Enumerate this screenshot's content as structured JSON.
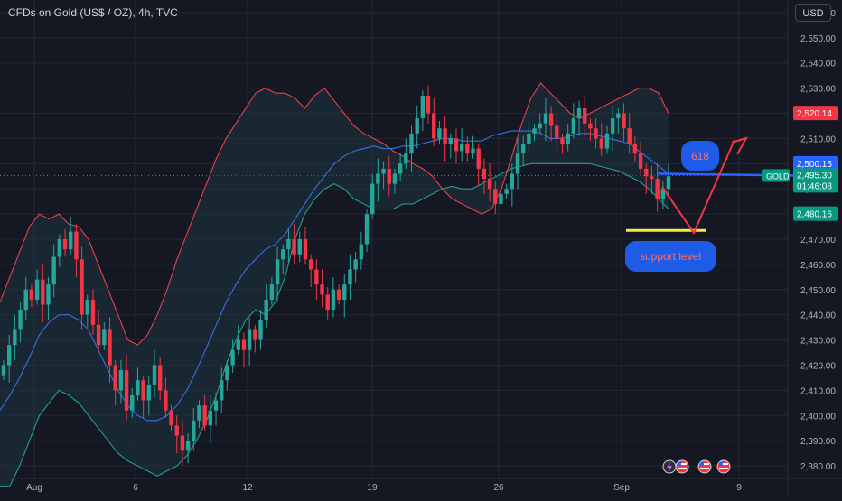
{
  "title": "CFDs on Gold (US$ / OZ), 4h, TVC",
  "currency": "USD",
  "colors": {
    "background": "#151822",
    "grid": "#242733",
    "bull": "#26a69a",
    "bear": "#f23645",
    "upper_band": "#e8404a",
    "middle_band": "#3a6fe0",
    "lower_band": "#22a085",
    "band_fill": "#1f3a4a",
    "annotation_red": "#f23645",
    "annotation_blue": "#2962ff",
    "support_yellow": "#f5e94a"
  },
  "chart_data": {
    "type": "candlestick",
    "symbol": "GOLD",
    "interval": "4h",
    "x_ticks": [
      "Aug",
      "6",
      "12",
      "19",
      "26",
      "Sep",
      "9"
    ],
    "y_ticks": [
      "2,380.00",
      "2,390.00",
      "2,400.00",
      "2,410.00",
      "2,420.00",
      "2,430.00",
      "2,440.00",
      "2,450.00",
      "2,460.00",
      "2,470.00",
      "2,480.00",
      "2,490.00",
      "2,500.00",
      "2,510.00",
      "2,520.00",
      "2,530.00",
      "2,540.00",
      "2,550.00",
      "2,560.00"
    ],
    "ylim": [
      2375,
      2565
    ],
    "price_labels": {
      "upper_band": "2,520.14",
      "middle_band": "2,500.15",
      "last_symbol": "GOLD",
      "last_price": "2,495.30",
      "countdown": "01:46:08",
      "lower_band": "2,480.16"
    },
    "last_price_value": 2495.3,
    "upper_band_value": 2520.14,
    "middle_band_value": 2500.15,
    "lower_band_value": 2480.16,
    "close_series": [
      2420,
      2428,
      2434,
      2442,
      2450,
      2446,
      2454,
      2444,
      2452,
      2463,
      2470,
      2466,
      2473,
      2462,
      2440,
      2446,
      2436,
      2428,
      2434,
      2420,
      2410,
      2418,
      2402,
      2408,
      2414,
      2406,
      2412,
      2420,
      2410,
      2402,
      2396,
      2392,
      2386,
      2390,
      2398,
      2404,
      2396,
      2402,
      2406,
      2414,
      2420,
      2426,
      2430,
      2426,
      2434,
      2430,
      2438,
      2446,
      2452,
      2462,
      2466,
      2470,
      2464,
      2470,
      2462,
      2458,
      2452,
      2448,
      2442,
      2450,
      2446,
      2452,
      2458,
      2462,
      2468,
      2480,
      2492,
      2496,
      2498,
      2492,
      2496,
      2500,
      2504,
      2512,
      2518,
      2527,
      2520,
      2510,
      2514,
      2508,
      2510,
      2505,
      2508,
      2504,
      2506,
      2498,
      2494,
      2490,
      2484,
      2488,
      2490,
      2496,
      2504,
      2508,
      2512,
      2514,
      2516,
      2520,
      2515,
      2510,
      2508,
      2512,
      2518,
      2522,
      2516,
      2514,
      2510,
      2506,
      2512,
      2518,
      2520,
      2514,
      2508,
      2504,
      2498,
      2495,
      2494,
      2486,
      2490,
      2495
    ],
    "upper_band_series": [
      2445,
      2455,
      2465,
      2475,
      2480,
      2478,
      2480,
      2476,
      2475,
      2470,
      2460,
      2450,
      2440,
      2430,
      2428,
      2432,
      2440,
      2450,
      2462,
      2472,
      2482,
      2492,
      2502,
      2510,
      2516,
      2522,
      2528,
      2530,
      2528,
      2528,
      2526,
      2522,
      2527,
      2530,
      2525,
      2520,
      2515,
      2512,
      2510,
      2508,
      2505,
      2503,
      2500,
      2498,
      2495,
      2490,
      2486,
      2484,
      2482,
      2480,
      2482,
      2490,
      2502,
      2515,
      2526,
      2532,
      2528,
      2524,
      2520,
      2518,
      2520,
      2522,
      2524,
      2526,
      2528,
      2530,
      2530,
      2528,
      2520
    ],
    "middle_band_series": [
      2402,
      2408,
      2415,
      2423,
      2432,
      2437,
      2440,
      2440,
      2438,
      2434,
      2426,
      2418,
      2410,
      2404,
      2400,
      2398,
      2398,
      2400,
      2404,
      2410,
      2418,
      2427,
      2436,
      2445,
      2452,
      2458,
      2462,
      2466,
      2468,
      2472,
      2478,
      2484,
      2490,
      2495,
      2500,
      2503,
      2505,
      2506,
      2507,
      2506,
      2506,
      2507,
      2507,
      2508,
      2509,
      2510,
      2510,
      2509,
      2509,
      2509,
      2511,
      2512,
      2513,
      2513,
      2513,
      2512,
      2510,
      2510,
      2511,
      2512,
      2512,
      2511,
      2510,
      2509,
      2508,
      2505,
      2502,
      2499,
      2496
    ],
    "lower_band_series": [
      2372,
      2372,
      2380,
      2390,
      2400,
      2405,
      2410,
      2408,
      2405,
      2400,
      2395,
      2390,
      2385,
      2382,
      2380,
      2378,
      2376,
      2378,
      2380,
      2384,
      2390,
      2398,
      2408,
      2420,
      2430,
      2438,
      2442,
      2440,
      2445,
      2455,
      2470,
      2480,
      2486,
      2490,
      2492,
      2490,
      2486,
      2484,
      2482,
      2482,
      2482,
      2484,
      2484,
      2486,
      2488,
      2490,
      2491,
      2490,
      2490,
      2492,
      2494,
      2496,
      2498,
      2499,
      2500,
      2500,
      2500,
      2500,
      2500,
      2500,
      2500,
      2499,
      2498,
      2497,
      2495,
      2493,
      2490,
      2486,
      2482
    ],
    "annotations": {
      "target_label": "618",
      "support_label": "support level",
      "resistance_line_value": 2495.3,
      "support_line_value": 2473.5
    }
  },
  "events": {
    "icons": [
      "lightning-icon",
      "us-flag-icon",
      "us-flag-icon",
      "us-flag-icon"
    ]
  }
}
